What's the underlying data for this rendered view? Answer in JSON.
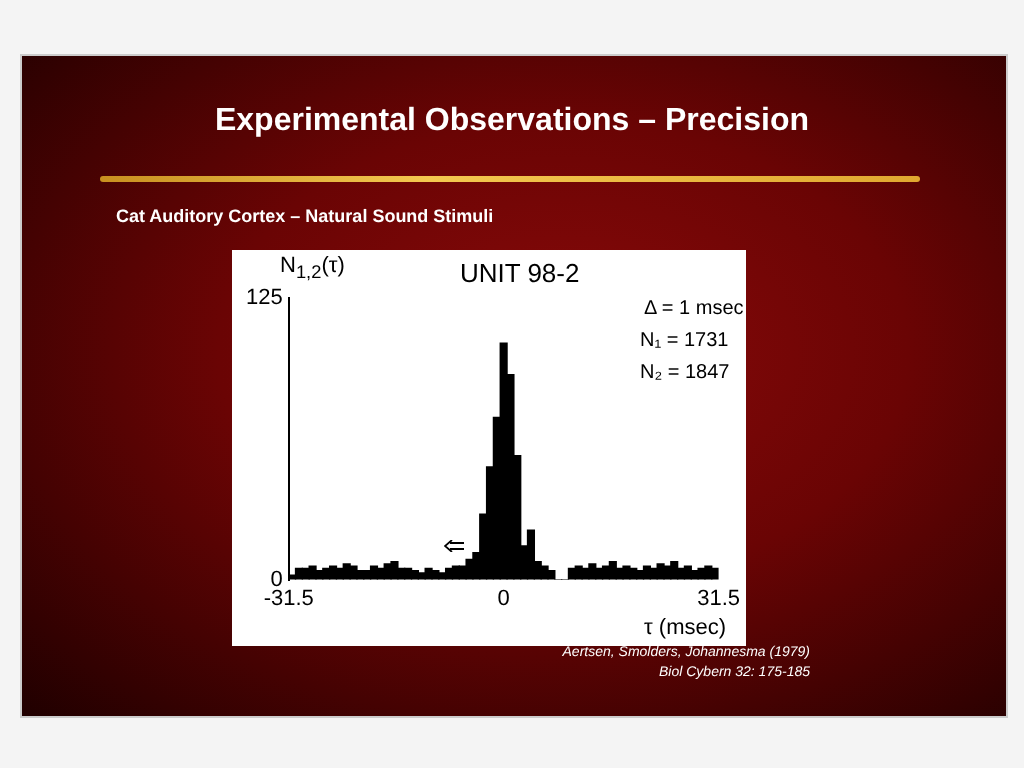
{
  "chart_data": {
    "type": "histogram",
    "title": "Experimental Observations – Precision",
    "subtitle": "Cat Auditory Cortex – Natural Sound Stimuli",
    "xlabel": "τ (msec)",
    "ylabel": "N$_{1,2}$(τ)",
    "bins": [
      -31.5,
      -30.5,
      -29.5,
      -28.5,
      -27.5,
      -26.5,
      -25.5,
      -24.5,
      -23.5,
      -22.5,
      -21.5,
      -20.5,
      -19.5,
      -18.5,
      -17.5,
      -16.5,
      -15.5,
      -14.5,
      -13.5,
      -12.5,
      -11.5,
      -10.5,
      -9.5,
      -8.5,
      -7.5,
      -6.5,
      -5.5,
      -4.5,
      -3.5,
      -2.5,
      -1.5,
      -0.5,
      0.5,
      1.5,
      2.5,
      3.5,
      4.5,
      5.5,
      6.5,
      7.5,
      8.5,
      9.5,
      10.5,
      11.5,
      12.5,
      13.5,
      14.5,
      15.5,
      16.5,
      17.5,
      18.5,
      19.5,
      20.5,
      21.5,
      22.5,
      23.5,
      24.5,
      25.5,
      26.5,
      27.5,
      28.5,
      29.5,
      30.5,
      31.5
    ],
    "values": [
      2,
      5,
      5,
      6,
      4,
      5,
      6,
      5,
      7,
      6,
      4,
      4,
      6,
      5,
      7,
      8,
      5,
      5,
      4,
      3,
      5,
      4,
      3,
      5,
      6,
      6,
      9,
      12,
      29,
      50,
      72,
      105,
      91,
      55,
      15,
      22,
      8,
      6,
      4,
      0,
      0,
      5,
      6,
      5,
      7,
      5,
      6,
      8,
      5,
      6,
      5,
      4,
      6,
      5,
      7,
      6,
      8,
      5,
      6,
      4,
      5,
      6,
      5
    ],
    "color": "#000000",
    "xlim": [
      -31.5,
      31.5
    ],
    "xticks": [
      -31.5,
      0,
      31.5
    ],
    "ylim": [
      0,
      125
    ],
    "yticks": [
      0,
      125
    ],
    "grid": false,
    "annotations": [
      "UNIT 98-2",
      "Δ = 1 msec",
      "N₁ = 1731",
      "N₂ = 1847",
      "Aertsen, Smolders, Johannesma (1979)",
      "Biol Cybern 32: 175-185"
    ]
  }
}
